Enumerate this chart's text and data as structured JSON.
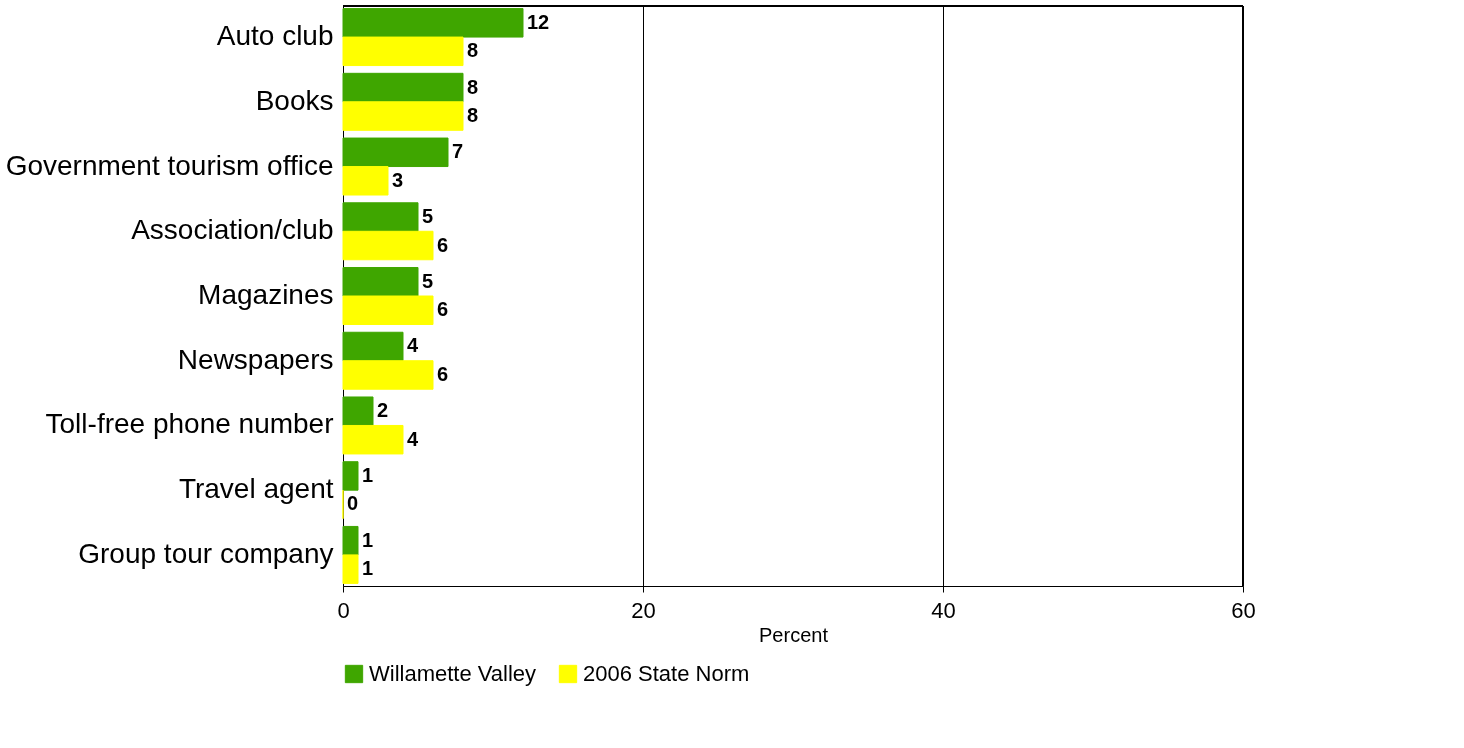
{
  "chart_data": {
    "type": "bar",
    "orientation": "horizontal",
    "xlabel": "Percent",
    "categories": [
      "Auto club",
      "Books",
      "Government tourism office",
      "Association/club",
      "Magazines",
      "Newspapers",
      "Toll-free phone number",
      "Travel agent",
      "Group tour company"
    ],
    "series": [
      {
        "name": "Willamette Valley",
        "color": "#3fa600",
        "values": [
          12,
          8,
          7,
          5,
          5,
          4,
          2,
          1,
          1
        ]
      },
      {
        "name": "2006 State Norm",
        "color": "#ffff00",
        "values": [
          8,
          8,
          3,
          6,
          6,
          6,
          4,
          0,
          1
        ]
      }
    ],
    "xlim": [
      0,
      60
    ],
    "xticks": [
      0,
      20,
      40,
      60
    ],
    "grid": "x",
    "legend": "bottom",
    "data_labels": true
  }
}
